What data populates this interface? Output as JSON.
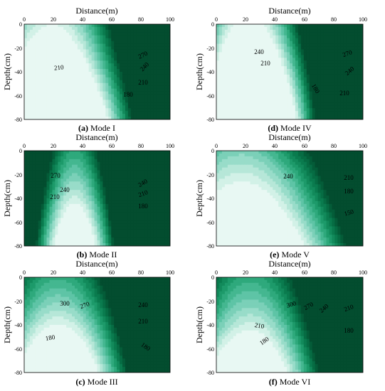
{
  "figure": {
    "x_axis_title": "Distance(m)",
    "y_axis_title": "Depth(cm)",
    "colors": {
      "levels": [
        "#e8f8f3",
        "#d2f1e7",
        "#b6e7d8",
        "#98dcc9",
        "#7bd0b8",
        "#5ec4a6",
        "#44b790",
        "#2ea97c",
        "#1d9a6a",
        "#128a5b",
        "#0a7b4e",
        "#066c43",
        "#045c38",
        "#034d2f"
      ],
      "line": "#3d5c52",
      "frame": "#000000"
    }
  },
  "chart_data": [
    {
      "type": "contour",
      "caption_letter": "(a)",
      "caption_text": " Mode I",
      "x_ticks": [
        "0",
        "20",
        "40",
        "60",
        "80",
        "100"
      ],
      "y_ticks": [
        "0",
        "-20",
        "-40",
        "-60",
        "-80"
      ],
      "xlim": [
        0,
        100
      ],
      "ylim": [
        -80,
        0
      ],
      "contour_labels": [
        "270",
        "240",
        "210",
        "210",
        "180"
      ],
      "field": {
        "top": 248,
        "slope": 0.5,
        "dip": [
          -10,
          50,
          0.002
        ],
        "peak": [
          95,
          -5,
          70,
          18
        ],
        "low": [
          70,
          -75,
          30,
          15
        ]
      }
    },
    {
      "type": "contour",
      "caption_letter": "(d)",
      "caption_text": " Mode IV",
      "x_ticks": [
        "0",
        "20",
        "40",
        "60",
        "80",
        "100"
      ],
      "y_ticks": [
        "0",
        "-20",
        "-40",
        "-60",
        "-80"
      ],
      "xlim": [
        0,
        100
      ],
      "ylim": [
        -80,
        0
      ],
      "contour_labels": [
        "240",
        "270",
        "210",
        "240",
        "180",
        "210"
      ],
      "field": {
        "top": 258,
        "slope": 0.15,
        "dip": [
          -5,
          50,
          0.003
        ],
        "peak": [
          95,
          -5,
          60,
          20
        ],
        "low": [
          45,
          -55,
          30,
          16
        ]
      }
    },
    {
      "type": "contour",
      "caption_letter": "(b)",
      "caption_text": " Mode II",
      "x_ticks": [
        "0",
        "20",
        "40",
        "60",
        "80",
        "100"
      ],
      "y_ticks": [
        "0",
        "-20",
        "-40",
        "-60",
        "-80"
      ],
      "xlim": [
        0,
        100
      ],
      "ylim": [
        -80,
        0
      ],
      "contour_labels": [
        "270",
        "240",
        "210",
        "240",
        "210",
        "180"
      ],
      "field": {
        "top": 278,
        "slope": 0.0,
        "dip": [
          45,
          25,
          0.006
        ],
        "peak": [
          90,
          -5,
          40,
          20
        ],
        "low": [
          20,
          -70,
          35,
          18
        ]
      }
    },
    {
      "type": "contour",
      "caption_letter": "(e)",
      "caption_text": " Mode V",
      "x_ticks": [
        "0",
        "20",
        "40",
        "60",
        "80",
        "100"
      ],
      "y_ticks": [
        "0",
        "-20",
        "-40",
        "-60",
        "-80"
      ],
      "xlim": [
        0,
        100
      ],
      "ylim": [
        -80,
        0
      ],
      "contour_labels": [
        "240",
        "210",
        "180",
        "150"
      ],
      "field": {
        "top": 262,
        "slope": 0.2,
        "dip": [
          -15,
          50,
          0.001
        ],
        "peak": [
          50,
          5,
          10,
          20
        ],
        "low": [
          95,
          -75,
          25,
          15
        ]
      }
    },
    {
      "type": "contour",
      "caption_letter": "(c)",
      "caption_text": " Mode III",
      "x_ticks": [
        "0",
        "20",
        "40",
        "60",
        "80",
        "100"
      ],
      "y_ticks": [
        "0",
        "-20",
        "-40",
        "-60",
        "-80"
      ],
      "xlim": [
        0,
        100
      ],
      "ylim": [
        -80,
        0
      ],
      "contour_labels": [
        "300",
        "270",
        "240",
        "210",
        "180",
        "180"
      ],
      "field": {
        "top": 308,
        "slope": -0.4,
        "dip": [
          -5,
          50,
          0.002
        ],
        "peak": [
          20,
          -2,
          30,
          18
        ],
        "low": [
          30,
          -78,
          30,
          12
        ]
      }
    },
    {
      "type": "contour",
      "caption_letter": "(f)",
      "caption_text": " Mode VI",
      "x_ticks": [
        "0",
        "20",
        "40",
        "60",
        "80",
        "100"
      ],
      "y_ticks": [
        "0",
        "-20",
        "-40",
        "-60",
        "-80"
      ],
      "xlim": [
        0,
        100
      ],
      "ylim": [
        -80,
        0
      ],
      "contour_labels": [
        "300",
        "270",
        "240",
        "210",
        "210",
        "180",
        "180"
      ],
      "field": {
        "top": 312,
        "slope": -0.5,
        "dip": [
          -5,
          50,
          0.002
        ],
        "peak": [
          25,
          -2,
          35,
          18
        ],
        "low": [
          5,
          -75,
          15,
          15
        ]
      }
    }
  ]
}
